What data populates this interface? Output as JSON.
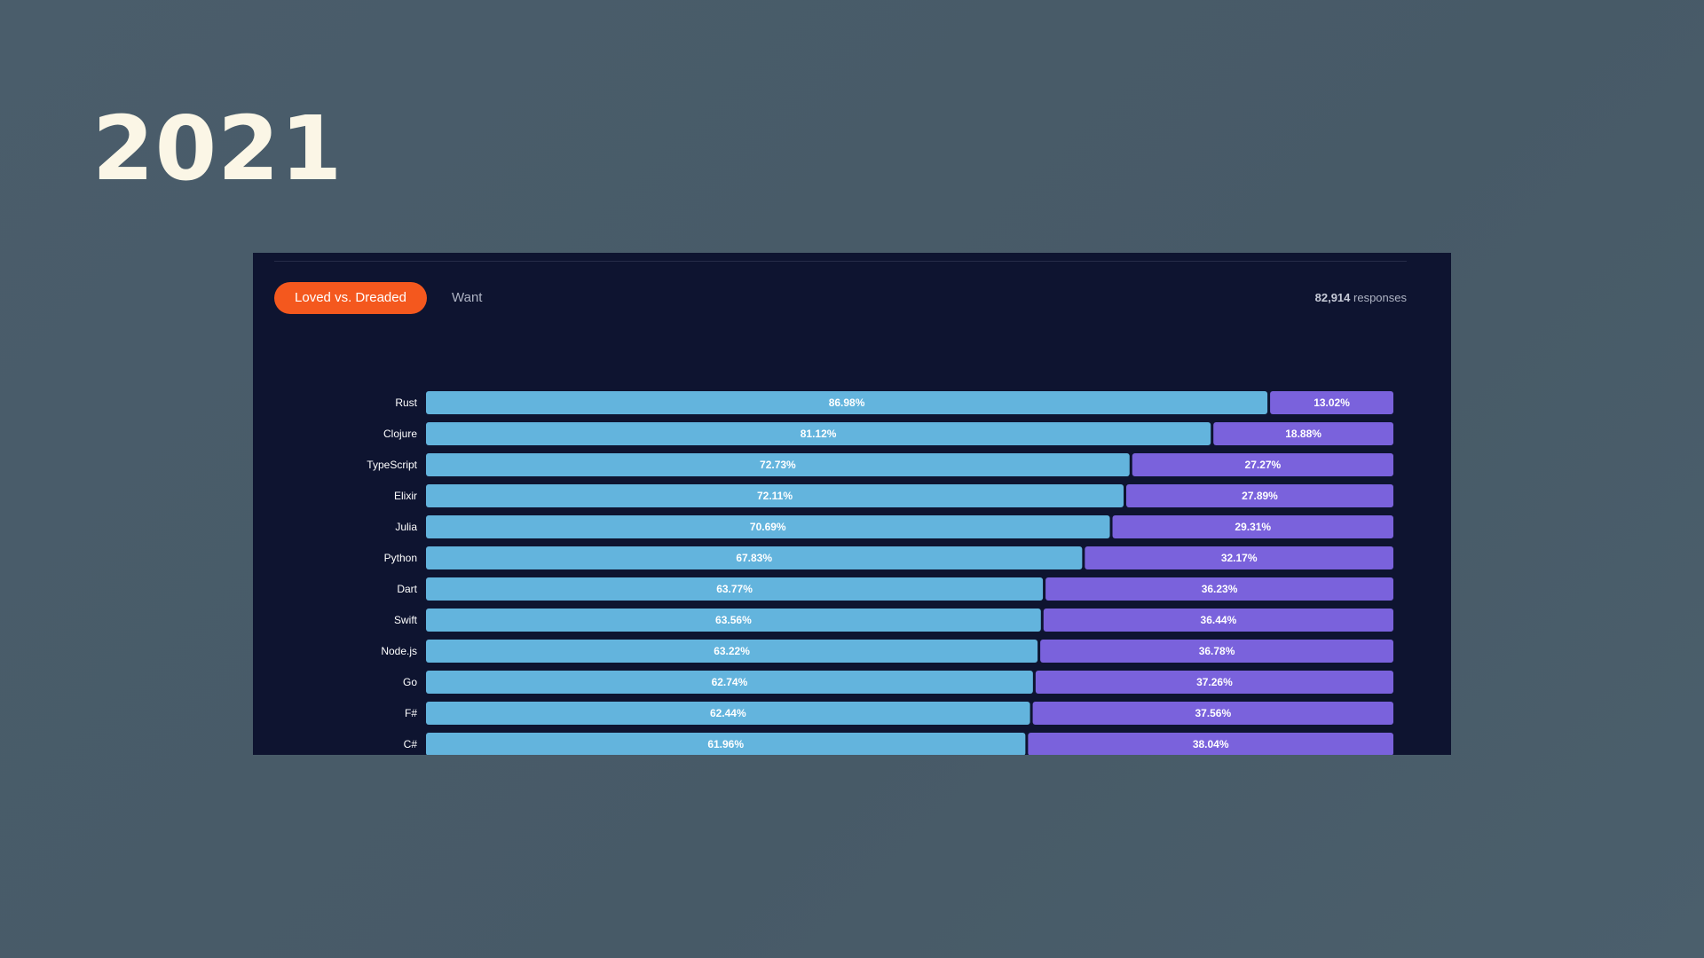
{
  "header": {
    "year": "2021"
  },
  "tabs": {
    "loved_label": "Loved vs. Dreaded",
    "want_label": "Want"
  },
  "responses": {
    "count": "82,914",
    "label": "responses"
  },
  "colors": {
    "loved": "#63b4dd",
    "dreaded": "#7a62dc",
    "accent": "#f4581e",
    "panel": "#0e1430"
  },
  "chart_data": {
    "type": "bar",
    "orientation": "horizontal",
    "stacked": true,
    "categories": [
      "Rust",
      "Clojure",
      "TypeScript",
      "Elixir",
      "Julia",
      "Python",
      "Dart",
      "Swift",
      "Node.js",
      "Go",
      "F#",
      "C#"
    ],
    "series": [
      {
        "values": [
          86.98,
          81.12,
          72.73,
          72.11,
          70.69,
          67.83,
          63.77,
          63.56,
          63.22,
          62.74,
          62.44,
          61.96
        ],
        "labels": [
          "86.98%",
          "81.12%",
          "72.73%",
          "72.11%",
          "70.69%",
          "67.83%",
          "63.77%",
          "63.56%",
          "63.22%",
          "62.74%",
          "62.44%",
          "61.96%"
        ]
      },
      {
        "values": [
          13.02,
          18.88,
          27.27,
          27.89,
          29.31,
          32.17,
          36.23,
          36.44,
          36.78,
          37.26,
          37.56,
          38.04
        ],
        "labels": [
          "13.02%",
          "18.88%",
          "27.27%",
          "27.89%",
          "29.31%",
          "32.17%",
          "36.23%",
          "36.44%",
          "36.78%",
          "37.26%",
          "37.56%",
          "38.04%"
        ]
      }
    ],
    "xlim": [
      0,
      100
    ],
    "grid": false,
    "title": "",
    "xlabel": "",
    "ylabel": ""
  }
}
